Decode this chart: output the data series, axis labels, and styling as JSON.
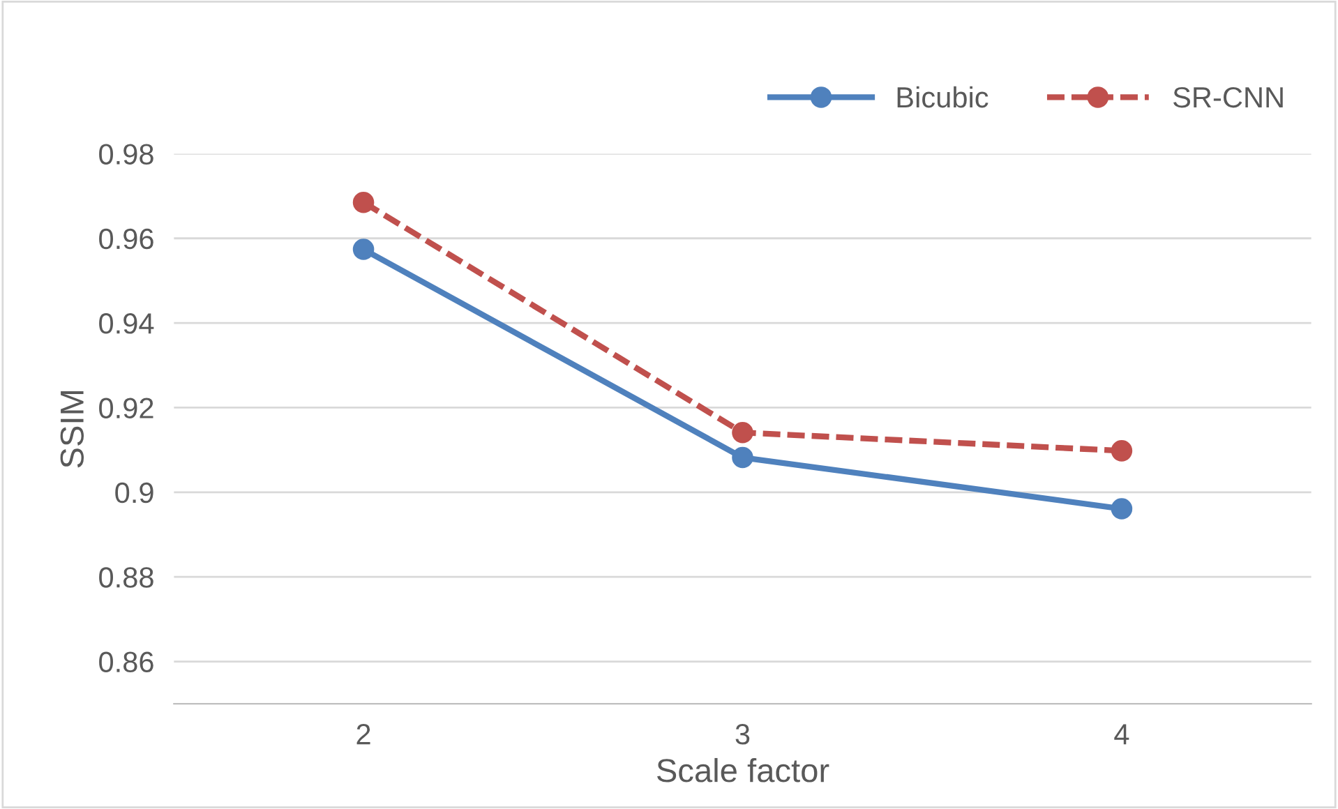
{
  "chart_data": {
    "type": "line",
    "xlabel": "Scale factor",
    "ylabel": "SSIM",
    "categories": [
      "2",
      "3",
      "4"
    ],
    "series": [
      {
        "name": "Bicubic",
        "color": "#4f81bd",
        "line_style": "solid",
        "values": [
          0.9574,
          0.9082,
          0.8961
        ]
      },
      {
        "name": "SR-CNN",
        "color": "#c0504d",
        "line_style": "dashed",
        "values": [
          0.9685,
          0.9141,
          0.9098
        ]
      }
    ],
    "ylim": [
      0.85,
      0.98
    ],
    "yticks": [
      0.86,
      0.88,
      0.9,
      0.92,
      0.94,
      0.96,
      0.98
    ],
    "grid": "y",
    "legend": "top right",
    "marker": "circle"
  }
}
